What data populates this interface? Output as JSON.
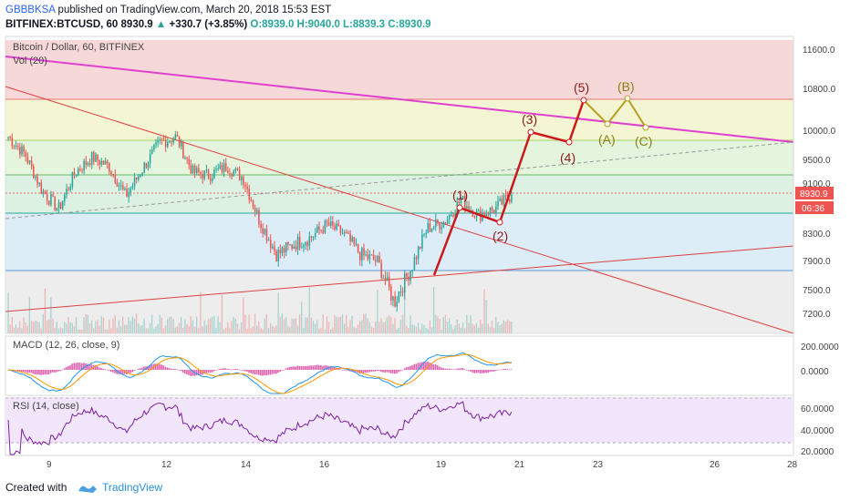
{
  "header": {
    "author": "GBBBKSA",
    "published_text": "published on TradingView.com, March 20, 2018 15:53 EST",
    "symbol": "BITFINEX:BTCUSD, 60",
    "last": "8930.9",
    "change_icon": "triangle-up-icon",
    "change": "+330.7 (+3.85%)",
    "ohlc": "O:8939.0 H:9040.0 L:8839.3 C:8930.9"
  },
  "panes": {
    "main_title": "Bitcoin / Dollar, 60, BITFINEX",
    "vol_label": "Vol (20)",
    "macd_label": "MACD (12, 26, close, 9)",
    "rsi_label": "RSI (14, close)"
  },
  "price_axis": {
    "ticks": [
      "11600.0",
      "10800.0",
      "10000.0",
      "9500.0",
      "9100.0",
      "8300.0",
      "7900.0",
      "7500.0",
      "7200.0"
    ],
    "last_price_badge": "8930.9",
    "countdown_badge": "06:36"
  },
  "macd_axis": {
    "ticks": [
      "200.0000",
      "0.0000"
    ]
  },
  "rsi_axis": {
    "ticks": [
      "60.0000",
      "40.0000",
      "20.0000"
    ]
  },
  "time_axis": {
    "ticks": [
      "9",
      "12",
      "14",
      "16",
      "19",
      "21",
      "23",
      "26",
      "28"
    ]
  },
  "wave_labels": {
    "w1": "(1)",
    "w2": "(2)",
    "w3": "(3)",
    "w4": "(4)",
    "w5": "(5)",
    "wA": "(A)",
    "wB": "(B)",
    "wC": "(C)"
  },
  "footer": {
    "created": "Created with",
    "brand": "TradingView",
    "logo_icon": "tradingview-logo-icon"
  },
  "colors": {
    "up": "#26a69a",
    "down": "#ef5350",
    "wave_impulse": "#cc1a1a",
    "wave_correction": "#b5a022",
    "label_impulse": "#8b1a1a",
    "label_correction": "#8a7d14",
    "channel_top": "#e040d0",
    "trend_red": "#e04040"
  },
  "chart_data": {
    "type": "candlestick",
    "title": "Bitcoin / Dollar, 60, BITFINEX",
    "symbol": "BITFINEX:BTCUSD",
    "interval": "60",
    "y_ticks": [
      11600,
      10800,
      10000,
      9500,
      9100,
      8300,
      7900,
      7500,
      7200
    ],
    "x_ticks": [
      "9",
      "12",
      "14",
      "16",
      "19",
      "21",
      "23",
      "26",
      "28"
    ],
    "last_price": 8930.9,
    "fib_levels": [
      11600,
      10800,
      10000,
      9500,
      9100,
      8300,
      7900,
      7500,
      7200
    ],
    "price_path": [
      {
        "date": "Mar 8",
        "close": 9900
      },
      {
        "date": "Mar 8",
        "close": 9600
      },
      {
        "date": "Mar 9",
        "close": 9000
      },
      {
        "date": "Mar 9",
        "close": 8700
      },
      {
        "date": "Mar 9",
        "close": 9300
      },
      {
        "date": "Mar 10",
        "close": 9550
      },
      {
        "date": "Mar 10",
        "close": 9400
      },
      {
        "date": "Mar 11",
        "close": 8900
      },
      {
        "date": "Mar 11",
        "close": 9350
      },
      {
        "date": "Mar 12",
        "close": 9800
      },
      {
        "date": "Mar 12",
        "close": 9900
      },
      {
        "date": "Mar 12",
        "close": 9300
      },
      {
        "date": "Mar 13",
        "close": 9250
      },
      {
        "date": "Mar 13",
        "close": 9400
      },
      {
        "date": "Mar 14",
        "close": 9200
      },
      {
        "date": "Mar 14",
        "close": 8500
      },
      {
        "date": "Mar 15",
        "close": 8000
      },
      {
        "date": "Mar 15",
        "close": 8150
      },
      {
        "date": "Mar 16",
        "close": 8250
      },
      {
        "date": "Mar 16",
        "close": 8450
      },
      {
        "date": "Mar 17",
        "close": 8300
      },
      {
        "date": "Mar 17",
        "close": 8000
      },
      {
        "date": "Mar 18",
        "close": 7900
      },
      {
        "date": "Mar 18",
        "close": 7350
      },
      {
        "date": "Mar 18",
        "close": 7800
      },
      {
        "date": "Mar 19",
        "close": 8400
      },
      {
        "date": "Mar 19",
        "close": 8500
      },
      {
        "date": "Mar 19",
        "close": 8850
      },
      {
        "date": "Mar 20",
        "close": 8600
      },
      {
        "date": "Mar 20",
        "close": 8700
      },
      {
        "date": "Mar 20",
        "close": 8930.9
      }
    ],
    "elliott_projection": [
      {
        "label": "(1)",
        "date": "Mar 19",
        "price": 8850
      },
      {
        "label": "(2)",
        "date": "Mar 20",
        "price": 8600
      },
      {
        "label": "(3)",
        "date": "Mar 21",
        "price": 10000
      },
      {
        "label": "(4)",
        "date": "Mar 22",
        "price": 9800
      },
      {
        "label": "(5)",
        "date": "Mar 22",
        "price": 10600
      },
      {
        "label": "(A)",
        "date": "Mar 23",
        "price": 10150
      },
      {
        "label": "(B)",
        "date": "Mar 23",
        "price": 10600
      },
      {
        "label": "(C)",
        "date": "Mar 24",
        "price": 10100
      }
    ],
    "macd": {
      "name": "MACD (12, 26, close, 9)",
      "y_ticks": [
        200,
        0
      ]
    },
    "rsi": {
      "name": "RSI (14, close)",
      "y_ticks": [
        60,
        40,
        20
      ]
    }
  }
}
